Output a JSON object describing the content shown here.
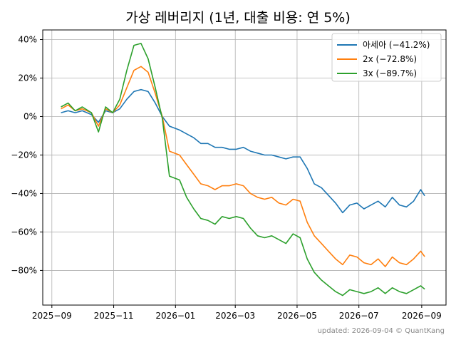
{
  "chart_data": {
    "type": "line",
    "title": "가상 레버리지 (1년, 대출 비용: 연 5%)",
    "footer": "updated: 2026-09-04 © QuantKang",
    "xlim": [
      "2025-08-23",
      "2026-09-25"
    ],
    "ylim": [
      -98,
      45
    ],
    "y_ticks": [
      40,
      20,
      0,
      -20,
      -40,
      -60,
      -80
    ],
    "y_tick_labels": [
      "40%",
      "20%",
      "0%",
      "−20%",
      "−40%",
      "−60%",
      "−80%"
    ],
    "x_ticks": [
      "2025-09-01",
      "2025-11-01",
      "2026-01-01",
      "2026-03-01",
      "2026-05-01",
      "2026-07-01",
      "2026-09-01"
    ],
    "x_tick_labels": [
      "2025−09",
      "2025−11",
      "2026−01",
      "2026−03",
      "2026−05",
      "2026−07",
      "2026−09"
    ],
    "grid": true,
    "legend_position": "top-right",
    "series": [
      {
        "name": "아세아 (−41.2%)",
        "color": "#1f77b4",
        "x": [
          "2025-09-10",
          "2025-09-17",
          "2025-09-24",
          "2025-10-01",
          "2025-10-10",
          "2025-10-17",
          "2025-10-24",
          "2025-10-31",
          "2025-11-07",
          "2025-11-14",
          "2025-11-21",
          "2025-11-28",
          "2025-12-05",
          "2025-12-12",
          "2025-12-19",
          "2025-12-26",
          "2026-01-05",
          "2026-01-12",
          "2026-01-19",
          "2026-01-26",
          "2026-02-02",
          "2026-02-09",
          "2026-02-16",
          "2026-02-23",
          "2026-03-02",
          "2026-03-09",
          "2026-03-16",
          "2026-03-23",
          "2026-03-30",
          "2026-04-06",
          "2026-04-13",
          "2026-04-20",
          "2026-04-27",
          "2026-05-04",
          "2026-05-11",
          "2026-05-18",
          "2026-05-25",
          "2026-06-01",
          "2026-06-08",
          "2026-06-15",
          "2026-06-22",
          "2026-06-29",
          "2026-07-06",
          "2026-07-13",
          "2026-07-20",
          "2026-07-27",
          "2026-08-03",
          "2026-08-10",
          "2026-08-17",
          "2026-08-24",
          "2026-08-31",
          "2026-09-04"
        ],
        "values": [
          2,
          3,
          2,
          3,
          1,
          -3,
          3,
          2,
          4,
          9,
          13,
          14,
          13,
          7,
          0,
          -5,
          -7,
          -9,
          -11,
          -14,
          -14,
          -16,
          -16,
          -17,
          -17,
          -16,
          -18,
          -19,
          -20,
          -20,
          -21,
          -22,
          -21,
          -21,
          -27,
          -35,
          -37,
          -41,
          -45,
          -50,
          -46,
          -45,
          -48,
          -46,
          -44,
          -47,
          -42,
          -46,
          -47,
          -44,
          -38,
          -41.2
        ]
      },
      {
        "name": "2x (−72.8%)",
        "color": "#ff7f0e",
        "x": [
          "2025-09-10",
          "2025-09-17",
          "2025-09-24",
          "2025-10-01",
          "2025-10-10",
          "2025-10-17",
          "2025-10-24",
          "2025-10-31",
          "2025-11-07",
          "2025-11-14",
          "2025-11-21",
          "2025-11-28",
          "2025-12-05",
          "2025-12-12",
          "2025-12-19",
          "2025-12-26",
          "2026-01-05",
          "2026-01-12",
          "2026-01-19",
          "2026-01-26",
          "2026-02-02",
          "2026-02-09",
          "2026-02-16",
          "2026-02-23",
          "2026-03-02",
          "2026-03-09",
          "2026-03-16",
          "2026-03-23",
          "2026-03-30",
          "2026-04-06",
          "2026-04-13",
          "2026-04-20",
          "2026-04-27",
          "2026-05-04",
          "2026-05-11",
          "2026-05-18",
          "2026-05-25",
          "2026-06-01",
          "2026-06-08",
          "2026-06-15",
          "2026-06-22",
          "2026-06-29",
          "2026-07-06",
          "2026-07-13",
          "2026-07-20",
          "2026-07-27",
          "2026-08-03",
          "2026-08-10",
          "2026-08-17",
          "2026-08-24",
          "2026-08-31",
          "2026-09-04"
        ],
        "values": [
          4,
          6,
          3,
          4,
          2,
          -5,
          4,
          2,
          6,
          15,
          24,
          26,
          23,
          12,
          0,
          -18,
          -20,
          -25,
          -30,
          -35,
          -36,
          -38,
          -36,
          -36,
          -35,
          -36,
          -40,
          -42,
          -43,
          -42,
          -45,
          -46,
          -43,
          -44,
          -55,
          -62,
          -66,
          -70,
          -74,
          -77,
          -72,
          -73,
          -76,
          -77,
          -74,
          -78,
          -73,
          -76,
          -77,
          -74,
          -70,
          -72.8
        ]
      },
      {
        "name": "3x (−89.7%)",
        "color": "#2ca02c",
        "x": [
          "2025-09-10",
          "2025-09-17",
          "2025-09-24",
          "2025-10-01",
          "2025-10-10",
          "2025-10-17",
          "2025-10-24",
          "2025-10-31",
          "2025-11-07",
          "2025-11-14",
          "2025-11-21",
          "2025-11-28",
          "2025-12-05",
          "2025-12-12",
          "2025-12-19",
          "2025-12-26",
          "2026-01-05",
          "2026-01-12",
          "2026-01-19",
          "2026-01-26",
          "2026-02-02",
          "2026-02-09",
          "2026-02-16",
          "2026-02-23",
          "2026-03-02",
          "2026-03-09",
          "2026-03-16",
          "2026-03-23",
          "2026-03-30",
          "2026-04-06",
          "2026-04-13",
          "2026-04-20",
          "2026-04-27",
          "2026-05-04",
          "2026-05-11",
          "2026-05-18",
          "2026-05-25",
          "2026-06-01",
          "2026-06-08",
          "2026-06-15",
          "2026-06-22",
          "2026-06-29",
          "2026-07-06",
          "2026-07-13",
          "2026-07-20",
          "2026-07-27",
          "2026-08-03",
          "2026-08-10",
          "2026-08-17",
          "2026-08-24",
          "2026-08-31",
          "2026-09-04"
        ],
        "values": [
          5,
          7,
          3,
          5,
          2,
          -8,
          5,
          2,
          9,
          24,
          37,
          38,
          30,
          15,
          -1,
          -31,
          -33,
          -42,
          -48,
          -53,
          -54,
          -56,
          -52,
          -53,
          -52,
          -53,
          -58,
          -62,
          -63,
          -62,
          -64,
          -66,
          -61,
          -63,
          -74,
          -81,
          -85,
          -88,
          -91,
          -93,
          -90,
          -91,
          -92,
          -91,
          -89,
          -92,
          -89,
          -91,
          -92,
          -90,
          -88,
          -89.7
        ]
      }
    ]
  }
}
